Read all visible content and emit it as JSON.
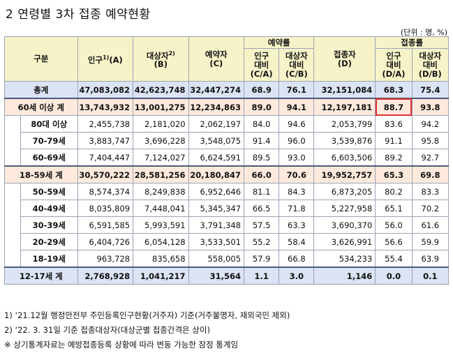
{
  "title": "2  연령별 3차 접종 예약현황",
  "unit": "(단위 : 명, %)",
  "headers": {
    "category": "구분",
    "population": "인구",
    "population_sup": "1)",
    "population_suffix": "(A)",
    "target": "대상자",
    "target_sup": "2)",
    "target_suffix": "(B)",
    "reserved": "예약자",
    "reserved_suffix": "(C)",
    "reserve_rate": "예약률",
    "pop_ratio_c": "인구\n대비\n(C/A)",
    "tgt_ratio_c": "대상자\n대비\n(C/B)",
    "vaccinated": "접종자",
    "vaccinated_suffix": "(D)",
    "vacc_rate": "접종률",
    "pop_ratio_d": "인구\n대비\n(D/A)",
    "tgt_ratio_d": "대상자\n대비\n(D/B)"
  },
  "rows": [
    {
      "label": "총계",
      "type": "total",
      "pop": "47,083,082",
      "tgt": "42,623,748",
      "res": "32,447,274",
      "rca": "68.9",
      "rcb": "76.1",
      "vac": "32,151,084",
      "rda": "68.3",
      "rdb": "75.4"
    },
    {
      "label": "60세 이상 계",
      "type": "group",
      "pop": "13,743,932",
      "tgt": "13,001,275",
      "res": "12,234,863",
      "rca": "89.0",
      "rcb": "94.1",
      "vac": "12,197,181",
      "rda": "88.7",
      "rdb": "93.8"
    },
    {
      "label": "80대 이상",
      "type": "sub",
      "pop": "2,455,738",
      "tgt": "2,181,020",
      "res": "2,062,197",
      "rca": "84.0",
      "rcb": "94.6",
      "vac": "2,053,799",
      "rda": "83.6",
      "rdb": "94.2"
    },
    {
      "label": "70-79세",
      "type": "sub",
      "pop": "3,883,747",
      "tgt": "3,696,228",
      "res": "3,548,075",
      "rca": "91.4",
      "rcb": "96.0",
      "vac": "3,539,876",
      "rda": "91.1",
      "rdb": "95.8"
    },
    {
      "label": "60-69세",
      "type": "sub",
      "pop": "7,404,447",
      "tgt": "7,124,027",
      "res": "6,624,591",
      "rca": "89.5",
      "rcb": "93.0",
      "vac": "6,603,506",
      "rda": "89.2",
      "rdb": "92.7"
    },
    {
      "label": "18-59세 계",
      "type": "group",
      "pop": "30,570,222",
      "tgt": "28,581,256",
      "res": "20,180,847",
      "rca": "66.0",
      "rcb": "70.6",
      "vac": "19,952,757",
      "rda": "65.3",
      "rdb": "69.8"
    },
    {
      "label": "50-59세",
      "type": "sub",
      "pop": "8,574,374",
      "tgt": "8,249,838",
      "res": "6,952,646",
      "rca": "81.1",
      "rcb": "84.3",
      "vac": "6,873,205",
      "rda": "80.2",
      "rdb": "83.3"
    },
    {
      "label": "40-49세",
      "type": "sub",
      "pop": "8,035,809",
      "tgt": "7,448,041",
      "res": "5,345,347",
      "rca": "66.5",
      "rcb": "71.8",
      "vac": "5,227,958",
      "rda": "65.1",
      "rdb": "70.2"
    },
    {
      "label": "30-39세",
      "type": "sub",
      "pop": "6,591,585",
      "tgt": "5,993,591",
      "res": "3,791,348",
      "rca": "57.5",
      "rcb": "63.3",
      "vac": "3,690,370",
      "rda": "56.0",
      "rdb": "61.6"
    },
    {
      "label": "20-29세",
      "type": "sub",
      "pop": "6,404,726",
      "tgt": "6,054,128",
      "res": "3,533,501",
      "rca": "55.2",
      "rcb": "58.4",
      "vac": "3,626,991",
      "rda": "56.6",
      "rdb": "59.9"
    },
    {
      "label": "18-19세",
      "type": "sub",
      "pop": "963,728",
      "tgt": "835,658",
      "res": "558,005",
      "rca": "57.9",
      "rcb": "66.8",
      "vac": "534,233",
      "rda": "55.4",
      "rdb": "63.9"
    },
    {
      "label": "12-17세 계",
      "type": "last",
      "pop": "2,768,928",
      "tgt": "1,041,217",
      "res": "31,564",
      "rca": "1.1",
      "rcb": "3.0",
      "vac": "1,146",
      "rda": "0.0",
      "rdb": "0.1"
    }
  ],
  "notes": [
    "1) ‘21.12월 행정안전부 주민등록인구현황(거주자) 기준(거주불명자, 재외국민 제외)",
    "2) ‘22. 3. 31일 기준 접종대상자(대상군별 접종간격은 상이)",
    "※ 상기통계자료는 예방접종등록 상황에 따라 변동 가능한 잠정 통계임"
  ]
}
